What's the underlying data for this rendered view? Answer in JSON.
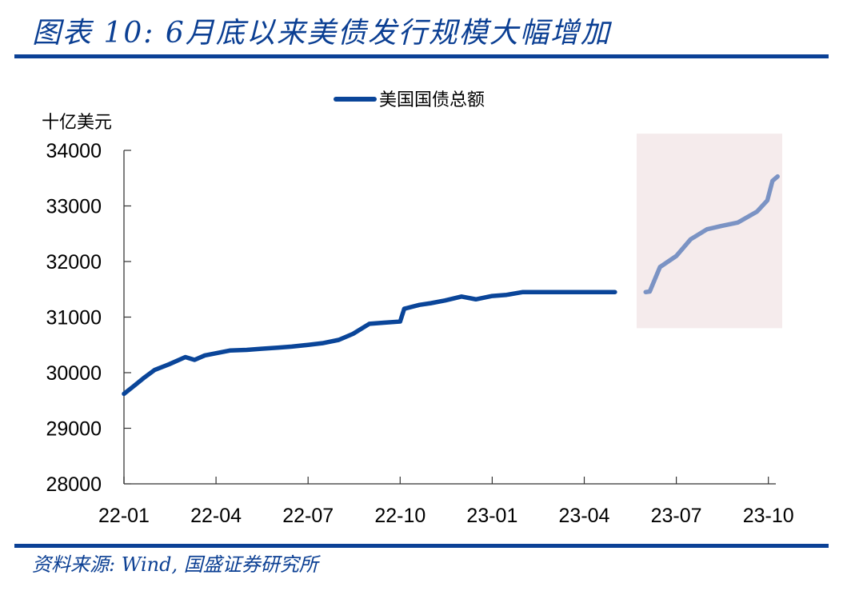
{
  "header": {
    "title": "图表 10: 6月底以来美债发行规模大幅增加"
  },
  "footer": {
    "source": "资料来源: Wind, 国盛证券研究所"
  },
  "colors": {
    "brand_blue": "#0b4196",
    "series_line": "#0a4599",
    "series_line_highlight": "#7b93c4",
    "highlight_fill": "#f5ebec"
  },
  "chart_data": {
    "type": "line",
    "title": "图表 10: 6月底以来美债发行规模大幅增加",
    "xlabel": "",
    "ylabel": "十亿美元",
    "ylim": [
      28000,
      34000
    ],
    "yticks": [
      28000,
      29000,
      30000,
      31000,
      32000,
      33000,
      34000
    ],
    "xticks": [
      "22-01",
      "22-04",
      "22-07",
      "22-10",
      "23-01",
      "23-04",
      "23-07",
      "23-10"
    ],
    "legend": {
      "position": "top-center",
      "entries": [
        "美国国债总额"
      ]
    },
    "grid": false,
    "highlight_region": {
      "x_start": "2023-06",
      "x_end": "2023-10",
      "y_from": 30800,
      "y_to": 34300,
      "color": "#f5ebec"
    },
    "series": [
      {
        "name": "美国国债总额",
        "color": "#0a4599",
        "x": [
          "2022-01-01",
          "2022-01-10",
          "2022-01-20",
          "2022-02-01",
          "2022-02-15",
          "2022-03-01",
          "2022-03-10",
          "2022-03-20",
          "2022-04-01",
          "2022-04-15",
          "2022-05-01",
          "2022-05-15",
          "2022-06-01",
          "2022-06-15",
          "2022-07-01",
          "2022-07-15",
          "2022-08-01",
          "2022-08-15",
          "2022-09-01",
          "2022-09-15",
          "2022-10-01",
          "2022-10-05",
          "2022-10-20",
          "2022-11-01",
          "2022-11-15",
          "2022-12-01",
          "2022-12-15",
          "2023-01-01",
          "2023-01-15",
          "2023-02-01",
          "2023-03-01",
          "2023-04-01",
          "2023-05-01",
          "2023-06-01",
          "2023-06-05",
          "2023-06-15",
          "2023-07-01",
          "2023-07-15",
          "2023-08-01",
          "2023-08-15",
          "2023-09-01",
          "2023-09-20",
          "2023-09-30",
          "2023-10-05",
          "2023-10-10"
        ],
        "values": [
          29620,
          29750,
          29900,
          30050,
          30150,
          30280,
          30230,
          30310,
          30350,
          30400,
          30410,
          30430,
          30450,
          30470,
          30500,
          30530,
          30590,
          30700,
          30880,
          30900,
          30920,
          31150,
          31220,
          31250,
          31300,
          31370,
          31320,
          31380,
          31400,
          31450,
          31450,
          31450,
          31450,
          31450,
          31460,
          31900,
          32100,
          32400,
          32580,
          32640,
          32700,
          32900,
          33100,
          33450,
          33530
        ]
      }
    ]
  }
}
